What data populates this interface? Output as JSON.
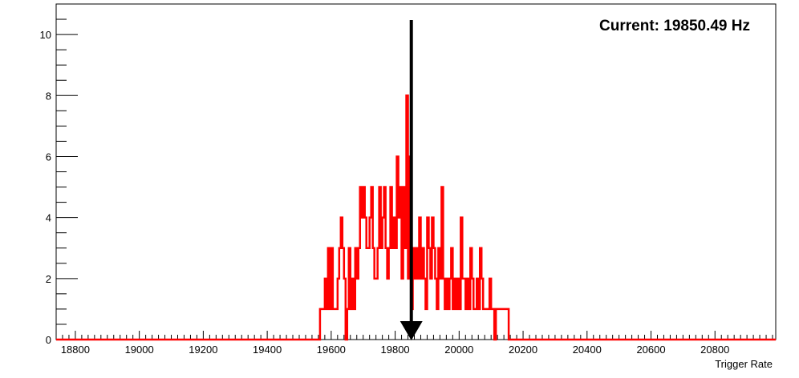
{
  "chart_data": {
    "type": "histogram",
    "xlabel": "Trigger Rate",
    "ylabel": "",
    "xlim": [
      18740,
      20990
    ],
    "ylim": [
      0,
      11
    ],
    "x_ticks": [
      18800,
      19000,
      19200,
      19400,
      19600,
      19800,
      20000,
      20200,
      20400,
      20600,
      20800
    ],
    "y_ticks": [
      0,
      2,
      4,
      6,
      8,
      10
    ],
    "grid": false,
    "series": [
      {
        "color": "#ff0000",
        "bin_width": 5,
        "x": [
          19565,
          19570,
          19575,
          19580,
          19585,
          19590,
          19595,
          19600,
          19605,
          19610,
          19615,
          19620,
          19625,
          19630,
          19635,
          19640,
          19645,
          19650,
          19655,
          19660,
          19665,
          19670,
          19675,
          19680,
          19685,
          19690,
          19695,
          19700,
          19705,
          19710,
          19715,
          19720,
          19725,
          19730,
          19735,
          19740,
          19745,
          19750,
          19755,
          19760,
          19765,
          19770,
          19775,
          19780,
          19785,
          19790,
          19795,
          19800,
          19805,
          19810,
          19815,
          19820,
          19825,
          19830,
          19835,
          19840,
          19845,
          19850,
          19855,
          19860,
          19865,
          19870,
          19875,
          19880,
          19885,
          19890,
          19895,
          19900,
          19905,
          19910,
          19915,
          19920,
          19925,
          19930,
          19935,
          19940,
          19945,
          19950,
          19955,
          19960,
          19965,
          19970,
          19975,
          19980,
          19985,
          19990,
          19995,
          20000,
          20005,
          20010,
          20015,
          20020,
          20025,
          20030,
          20035,
          20040,
          20045,
          20050,
          20055,
          20060,
          20065,
          20070,
          20075,
          20080,
          20085,
          20090,
          20095,
          20100,
          20105,
          20110,
          20115,
          20120,
          20125,
          20130,
          20135,
          20140,
          20145,
          20150,
          20155,
          20160,
          20165,
          20170,
          20175,
          20180,
          20185,
          20190,
          20195,
          20200
        ],
        "values": [
          1,
          1,
          1,
          2,
          1,
          3,
          1,
          3,
          1,
          1,
          1,
          2,
          3,
          4,
          3,
          2,
          0,
          1,
          3,
          1,
          2,
          1,
          3,
          2,
          3,
          5,
          4,
          5,
          4,
          3,
          3,
          4,
          5,
          3,
          2,
          2,
          3,
          5,
          3,
          4,
          5,
          3,
          2,
          3,
          5,
          3,
          4,
          3,
          6,
          4,
          5,
          2,
          5,
          3,
          8,
          2,
          6,
          1,
          3,
          2,
          3,
          2,
          4,
          2,
          3,
          2,
          1,
          4,
          3,
          2,
          4,
          3,
          2,
          1,
          3,
          2,
          5,
          2,
          1,
          2,
          1,
          2,
          3,
          1,
          2,
          1,
          2,
          1,
          4,
          2,
          2,
          1,
          2,
          1,
          3,
          2,
          1,
          1,
          2,
          1,
          3,
          2,
          1,
          1,
          1,
          1,
          2,
          1,
          1,
          0,
          1,
          1,
          1,
          1,
          1,
          1,
          1,
          1,
          0,
          0,
          0,
          0,
          0,
          0,
          0,
          0,
          0,
          0
        ]
      }
    ],
    "marker": {
      "type": "arrow-down",
      "x": 19850.49,
      "color": "#000000"
    },
    "annotations": [
      {
        "text": "Current: 19850.49 Hz",
        "position": "top-right"
      }
    ]
  }
}
